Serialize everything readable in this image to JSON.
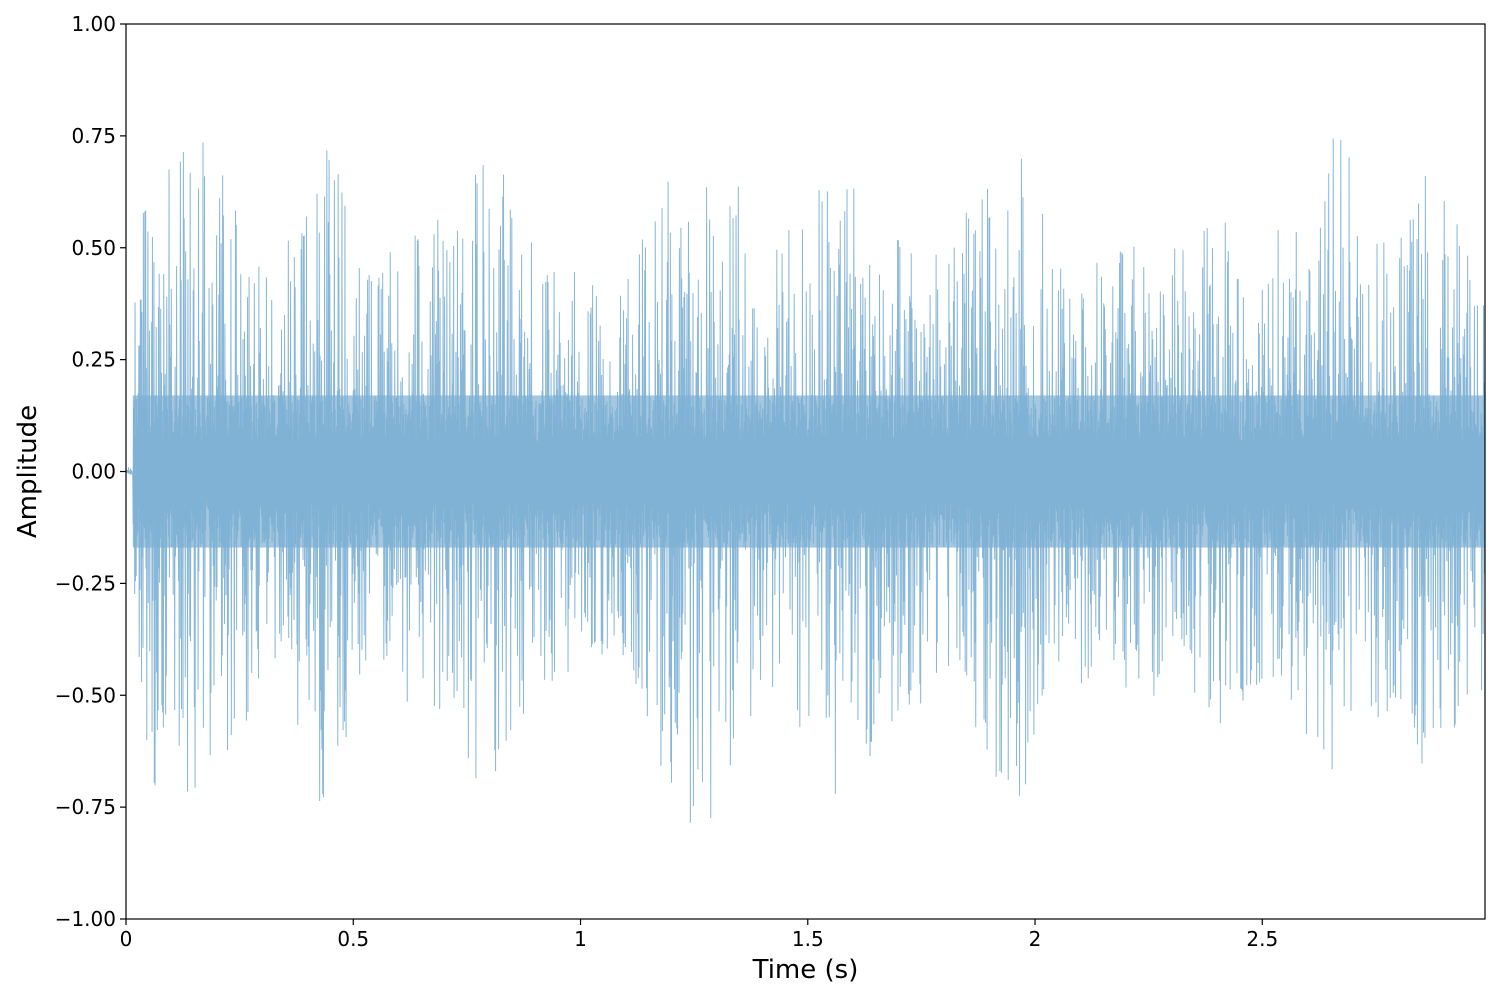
{
  "chart_data": {
    "type": "line",
    "title": "",
    "xlabel": "Time (s)",
    "ylabel": "Amplitude",
    "xlim": [
      0,
      2.99
    ],
    "ylim": [
      -1.0,
      1.0
    ],
    "grid": false,
    "x_ticks": [
      {
        "value": 0,
        "label": "0"
      },
      {
        "value": 0.5,
        "label": "0.5"
      },
      {
        "value": 1,
        "label": "1"
      },
      {
        "value": 1.5,
        "label": "1.5"
      },
      {
        "value": 2,
        "label": "2"
      },
      {
        "value": 2.5,
        "label": "2.5"
      }
    ],
    "y_ticks": [
      {
        "value": 1.0,
        "label": "1.00"
      },
      {
        "value": 0.75,
        "label": "0.75"
      },
      {
        "value": 0.5,
        "label": "0.50"
      },
      {
        "value": 0.25,
        "label": "0.25"
      },
      {
        "value": 0.0,
        "label": "0.00"
      },
      {
        "value": -0.25,
        "label": "−0.25"
      },
      {
        "value": -0.5,
        "label": "−0.50"
      },
      {
        "value": -0.75,
        "label": "−0.75"
      },
      {
        "value": -1.0,
        "label": "−1.00"
      }
    ],
    "series": [
      {
        "color": "#7bafd4",
        "fill_color": "#a5c7df",
        "duration": 2.99,
        "signal_start": 0.015,
        "envelope": [
          {
            "t": 0.0,
            "a": 0.02
          },
          {
            "t": 0.015,
            "a": 0.36
          },
          {
            "t": 0.05,
            "a": 0.72
          },
          {
            "t": 0.12,
            "a": 0.73
          },
          {
            "t": 0.2,
            "a": 0.77
          },
          {
            "t": 0.3,
            "a": 0.45
          },
          {
            "t": 0.4,
            "a": 0.6
          },
          {
            "t": 0.455,
            "a": 0.91
          },
          {
            "t": 0.5,
            "a": 0.45
          },
          {
            "t": 0.6,
            "a": 0.5
          },
          {
            "t": 0.72,
            "a": 0.6
          },
          {
            "t": 0.8,
            "a": 0.74
          },
          {
            "t": 0.9,
            "a": 0.5
          },
          {
            "t": 1.0,
            "a": 0.45
          },
          {
            "t": 1.1,
            "a": 0.42
          },
          {
            "t": 1.22,
            "a": 0.81
          },
          {
            "t": 1.3,
            "a": 0.79
          },
          {
            "t": 1.4,
            "a": 0.5
          },
          {
            "t": 1.5,
            "a": 0.6
          },
          {
            "t": 1.55,
            "a": 0.72
          },
          {
            "t": 1.6,
            "a": 0.72
          },
          {
            "t": 1.7,
            "a": 0.55
          },
          {
            "t": 1.8,
            "a": 0.5
          },
          {
            "t": 1.96,
            "a": 0.76
          },
          {
            "t": 2.05,
            "a": 0.48
          },
          {
            "t": 2.2,
            "a": 0.5
          },
          {
            "t": 2.3,
            "a": 0.52
          },
          {
            "t": 2.43,
            "a": 0.59
          },
          {
            "t": 2.55,
            "a": 0.59
          },
          {
            "t": 2.62,
            "a": 0.62
          },
          {
            "t": 2.66,
            "a": 0.8
          },
          {
            "t": 2.75,
            "a": 0.55
          },
          {
            "t": 2.85,
            "a": 0.68
          },
          {
            "t": 2.94,
            "a": 0.6
          },
          {
            "t": 2.99,
            "a": 0.55
          }
        ],
        "core_amplitude": 0.17
      }
    ]
  }
}
